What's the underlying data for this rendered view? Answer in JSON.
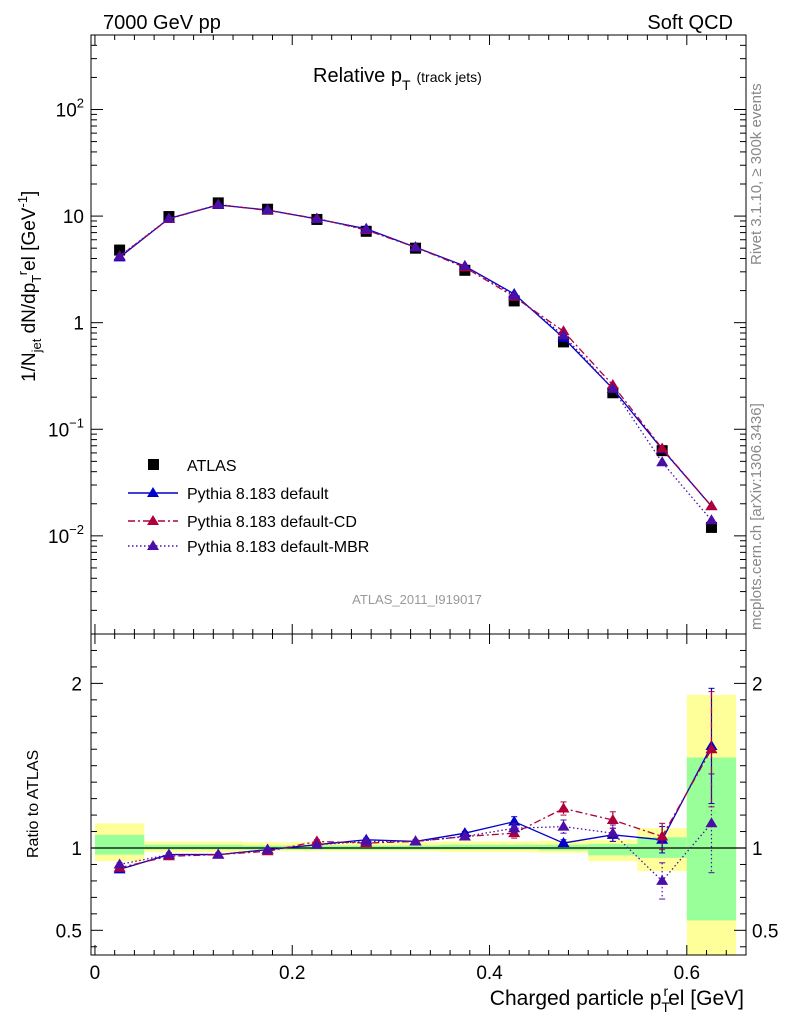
{
  "header": {
    "left": "7000 GeV pp",
    "right": "Soft QCD"
  },
  "side_labels": {
    "rivet": "Rivet 3.1.10, ≥ 300k events",
    "mcplots": "mcplots.cern.ch [arXiv:1306.3436]"
  },
  "analysis_id": "ATLAS_2011_I919017",
  "colors": {
    "atlas": "#000000",
    "default": "#0000cc",
    "cd": "#b0003a",
    "mbr": "#4b0fa8",
    "band_yellow": "#ffff99",
    "band_green": "#99ff99"
  },
  "chart_data": [
    {
      "type": "line",
      "title": "Relative p_T (track jets)",
      "title_main": "Relative p",
      "title_sub": "T",
      "title_note": "(track jets)",
      "ylabel": "1/N_jet dN/dp_T^rel [GeV^-1]",
      "yscale": "log",
      "ylim": [
        0.0012,
        500
      ],
      "xlim": [
        -0.004,
        0.66
      ],
      "ytick_labels": [
        {
          "value": 100,
          "base": "10",
          "exp": "2"
        },
        {
          "value": 10,
          "base": "10",
          "exp": ""
        },
        {
          "value": 1,
          "base": "1",
          "exp": ""
        },
        {
          "value": 0.1,
          "base": "10",
          "exp": "−1"
        },
        {
          "value": 0.01,
          "base": "10",
          "exp": "−2"
        }
      ],
      "x": [
        0.025,
        0.075,
        0.125,
        0.175,
        0.225,
        0.275,
        0.325,
        0.375,
        0.425,
        0.475,
        0.525,
        0.575,
        0.625
      ],
      "series": [
        {
          "name": "ATLAS",
          "marker": "square",
          "values": [
            4.8,
            9.9,
            13.3,
            11.6,
            9.3,
            7.2,
            5.0,
            3.1,
            1.6,
            0.66,
            0.22,
            0.063,
            0.012
          ]
        },
        {
          "name": "Pythia 8.183 default",
          "marker": "triangle",
          "dash": "solid",
          "values": [
            4.1,
            9.5,
            12.7,
            11.4,
            9.4,
            7.6,
            5.1,
            3.4,
            1.86,
            0.72,
            0.24,
            0.065,
            0.019
          ]
        },
        {
          "name": "Pythia 8.183 default-CD",
          "marker": "triangle",
          "dash": "dashdot",
          "values": [
            4.2,
            9.4,
            12.8,
            11.3,
            9.5,
            7.4,
            5.1,
            3.3,
            1.75,
            0.83,
            0.26,
            0.066,
            0.019
          ]
        },
        {
          "name": "Pythia 8.183 default-MBR",
          "marker": "triangle",
          "dash": "dotted",
          "values": [
            4.2,
            9.5,
            12.8,
            11.4,
            9.4,
            7.5,
            5.1,
            3.4,
            1.8,
            0.76,
            0.24,
            0.049,
            0.014
          ]
        }
      ]
    },
    {
      "type": "line",
      "title": "Ratio to ATLAS",
      "xlabel": "Charged particle p_T^rel [GeV]",
      "xlabel_main": "Charged particle p",
      "xlabel_sub": "T",
      "xlabel_sup": "r",
      "xlabel_tail": "el [GeV]",
      "ylabel": "Ratio to ATLAS",
      "ylim": [
        0.35,
        2.3
      ],
      "xlim": [
        -0.004,
        0.66
      ],
      "yticks": [
        0.5,
        1,
        2
      ],
      "ytick_labels": [
        "0.5",
        "1",
        "2"
      ],
      "xticks": [
        0,
        0.2,
        0.4,
        0.6
      ],
      "xtick_labels": [
        "0",
        "0.2",
        "0.4",
        "0.6"
      ],
      "x": [
        0.025,
        0.075,
        0.125,
        0.175,
        0.225,
        0.275,
        0.325,
        0.375,
        0.425,
        0.475,
        0.525,
        0.575,
        0.625
      ],
      "bin_edges": [
        0,
        0.05,
        0.1,
        0.15,
        0.2,
        0.25,
        0.3,
        0.35,
        0.4,
        0.45,
        0.5,
        0.55,
        0.6,
        0.65
      ],
      "band_yellow": [
        [
          0.92,
          1.15
        ],
        [
          0.975,
          1.04
        ],
        [
          0.975,
          1.04
        ],
        [
          0.98,
          1.035
        ],
        [
          0.98,
          1.035
        ],
        [
          0.98,
          1.035
        ],
        [
          0.98,
          1.035
        ],
        [
          0.975,
          1.04
        ],
        [
          0.975,
          1.04
        ],
        [
          0.97,
          1.045
        ],
        [
          0.92,
          1.05
        ],
        [
          0.86,
          1.12
        ],
        [
          0.35,
          1.93
        ]
      ],
      "band_green": [
        [
          0.96,
          1.08
        ],
        [
          0.99,
          1.02
        ],
        [
          0.99,
          1.02
        ],
        [
          0.99,
          1.015
        ],
        [
          0.99,
          1.015
        ],
        [
          0.99,
          1.015
        ],
        [
          0.99,
          1.015
        ],
        [
          0.99,
          1.02
        ],
        [
          0.99,
          1.02
        ],
        [
          0.985,
          1.02
        ],
        [
          0.955,
          1.025
        ],
        [
          0.94,
          1.065
        ],
        [
          0.56,
          1.55
        ]
      ],
      "series": [
        {
          "name": "Pythia 8.183 default",
          "values": [
            0.87,
            0.96,
            0.96,
            0.99,
            1.02,
            1.05,
            1.04,
            1.09,
            1.16,
            1.03,
            1.08,
            1.05,
            1.62
          ],
          "err": [
            0.01,
            0.01,
            0.01,
            0.01,
            0.01,
            0.01,
            0.01,
            0.01,
            0.03,
            0.02,
            0.04,
            0.08,
            0.35
          ]
        },
        {
          "name": "Pythia 8.183 default-CD",
          "values": [
            0.88,
            0.95,
            0.96,
            0.98,
            1.04,
            1.03,
            1.04,
            1.07,
            1.09,
            1.24,
            1.17,
            1.07,
            1.6
          ],
          "err": [
            0.01,
            0.01,
            0.01,
            0.01,
            0.01,
            0.01,
            0.01,
            0.01,
            0.03,
            0.04,
            0.05,
            0.08,
            0.35
          ]
        },
        {
          "name": "Pythia 8.183 default-MBR",
          "values": [
            0.9,
            0.96,
            0.96,
            0.99,
            1.02,
            1.04,
            1.04,
            1.07,
            1.12,
            1.13,
            1.09,
            0.8,
            1.15
          ],
          "err": [
            0.01,
            0.01,
            0.01,
            0.01,
            0.01,
            0.01,
            0.01,
            0.01,
            0.03,
            0.04,
            0.05,
            0.11,
            0.3
          ]
        }
      ]
    }
  ]
}
